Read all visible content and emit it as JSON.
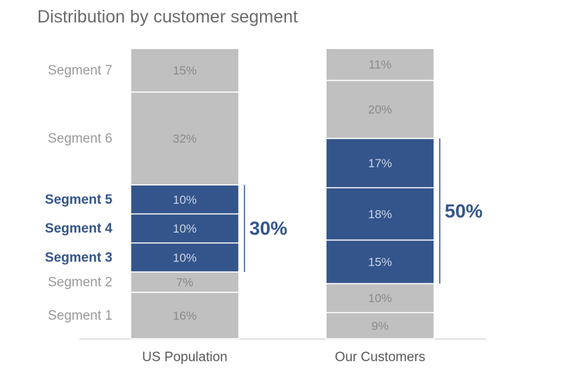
{
  "chart_data": {
    "type": "stacked-bar",
    "title": "Distribution by customer segment",
    "categories": [
      "US Population",
      "Our Customers"
    ],
    "series": [
      {
        "name": "Segment 1",
        "values": [
          16,
          9
        ]
      },
      {
        "name": "Segment 2",
        "values": [
          7,
          10
        ]
      },
      {
        "name": "Segment 3",
        "values": [
          10,
          15
        ]
      },
      {
        "name": "Segment 4",
        "values": [
          10,
          18
        ]
      },
      {
        "name": "Segment 5",
        "values": [
          10,
          17
        ]
      },
      {
        "name": "Segment 6",
        "values": [
          32,
          20
        ]
      },
      {
        "name": "Segment 7",
        "values": [
          15,
          11
        ]
      }
    ],
    "value_labels": [
      [
        "16%",
        "7%",
        "10%",
        "10%",
        "10%",
        "32%",
        "15%"
      ],
      [
        "9%",
        "10%",
        "15%",
        "18%",
        "17%",
        "20%",
        "11%"
      ]
    ],
    "highlighted_segments": [
      "Segment 3",
      "Segment 4",
      "Segment 5"
    ],
    "bracket_labels": [
      "30%",
      "50%"
    ],
    "ylim": [
      0,
      100
    ],
    "colors": {
      "base": "#c0c0c0",
      "highlight": "#34558b",
      "segment_text": "#ffffff",
      "value_text_base": "#8a8a8a",
      "value_text_highlight": "#c8d3e6",
      "axis_label": "#595959",
      "row_label": "#9a9a9a",
      "title": "#6b6b6b"
    }
  }
}
